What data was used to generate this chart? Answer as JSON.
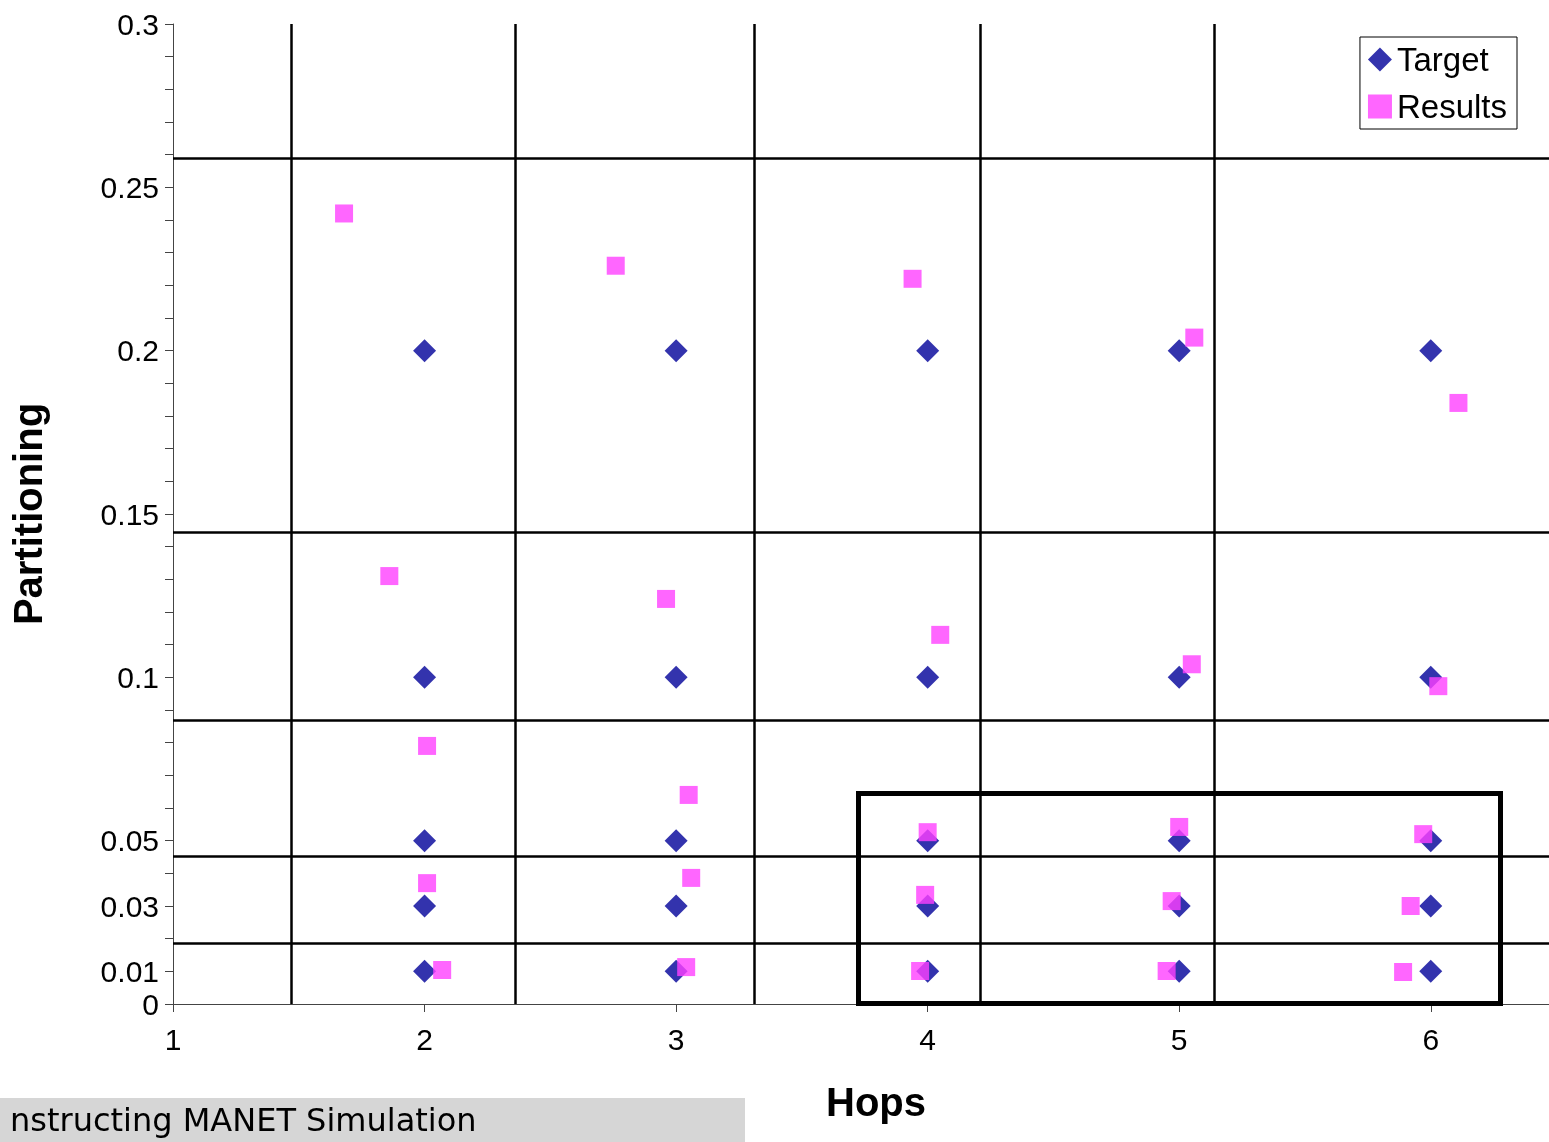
{
  "chart_data": {
    "type": "scatter",
    "xlabel": "Hops",
    "ylabel": "Partitioning",
    "xlim": [
      1,
      6.47
    ],
    "xticks": [
      1,
      2,
      3,
      4,
      5,
      6
    ],
    "ylim": [
      0,
      0.3
    ],
    "yticks": [
      0,
      0.01,
      {
        "value": 0.02,
        "label": null
      },
      0.03,
      {
        "value": 0.04,
        "label": null
      },
      0.05,
      {
        "value": 0.06,
        "label": null
      },
      {
        "value": 0.07,
        "label": null
      },
      {
        "value": 0.08,
        "label": null
      },
      {
        "value": 0.09,
        "label": null
      },
      0.1,
      {
        "value": 0.11,
        "label": null
      },
      {
        "value": 0.12,
        "label": null
      },
      {
        "value": 0.13,
        "label": null
      },
      {
        "value": 0.14,
        "label": null
      },
      0.15,
      {
        "value": 0.16,
        "label": null
      },
      {
        "value": 0.17,
        "label": null
      },
      {
        "value": 0.18,
        "label": null
      },
      {
        "value": 0.19,
        "label": null
      },
      0.2,
      {
        "value": 0.21,
        "label": null
      },
      {
        "value": 0.22,
        "label": null
      },
      {
        "value": 0.23,
        "label": null
      },
      {
        "value": 0.24,
        "label": null
      },
      0.25,
      {
        "value": 0.26,
        "label": null
      },
      {
        "value": 0.27,
        "label": null
      },
      {
        "value": 0.28,
        "label": null
      },
      {
        "value": 0.29,
        "label": null
      },
      0.3
    ],
    "grid": false,
    "legend": "top right",
    "series": [
      {
        "name": "Target",
        "color": "#000099",
        "marker": "diamond",
        "x": [
          2,
          2,
          2,
          2,
          2,
          3,
          3,
          3,
          3,
          3,
          4,
          4,
          4,
          4,
          4,
          5,
          5,
          5,
          5,
          5,
          6,
          6,
          6,
          6,
          6
        ],
        "values": [
          0.01,
          0.03,
          0.05,
          0.1,
          0.2,
          0.01,
          0.03,
          0.05,
          0.1,
          0.2,
          0.01,
          0.03,
          0.05,
          0.1,
          0.2,
          0.01,
          0.03,
          0.05,
          0.1,
          0.2,
          0.01,
          0.03,
          0.05,
          0.1,
          0.2
        ]
      },
      {
        "name": "Results",
        "color": "#ff40ff",
        "marker": "square",
        "x": [
          1.68,
          1.86,
          2.01,
          2.01,
          2.07,
          2.76,
          2.96,
          3.05,
          3.06,
          3.04,
          3.94,
          4.05,
          4.0,
          3.99,
          3.97,
          5.06,
          5.05,
          5.0,
          4.97,
          4.95,
          6.11,
          6.03,
          5.97,
          5.92,
          5.89
        ],
        "values": [
          0.242,
          0.131,
          0.079,
          0.037,
          0.0104,
          0.226,
          0.124,
          0.064,
          0.0386,
          0.0113,
          0.222,
          0.113,
          0.0526,
          0.0334,
          0.0101,
          0.204,
          0.104,
          0.0542,
          0.0315,
          0.0101,
          0.184,
          0.0973,
          0.052,
          0.03,
          0.0098
        ]
      }
    ],
    "ref_lines": [
      {
        "axis": "y",
        "value": 0.259,
        "color": "#000000"
      },
      {
        "axis": "y",
        "value": 0.1445,
        "color": "#000000"
      },
      {
        "axis": "y",
        "value": 0.087,
        "color": "#000000"
      },
      {
        "axis": "y",
        "value": 0.0453,
        "color": "#000000"
      },
      {
        "axis": "y",
        "value": 0.0187,
        "color": "#000000"
      },
      {
        "axis": "x",
        "value": 1.47,
        "color": "#000000"
      },
      {
        "axis": "x",
        "value": 2.36,
        "color": "#000000"
      },
      {
        "axis": "x",
        "value": 3.31,
        "color": "#000000"
      },
      {
        "axis": "x",
        "value": 4.21,
        "color": "#000000"
      },
      {
        "axis": "x",
        "value": 5.14,
        "color": "#000000"
      }
    ],
    "annotations": [
      "nstructing MANET Simulation"
    ]
  }
}
